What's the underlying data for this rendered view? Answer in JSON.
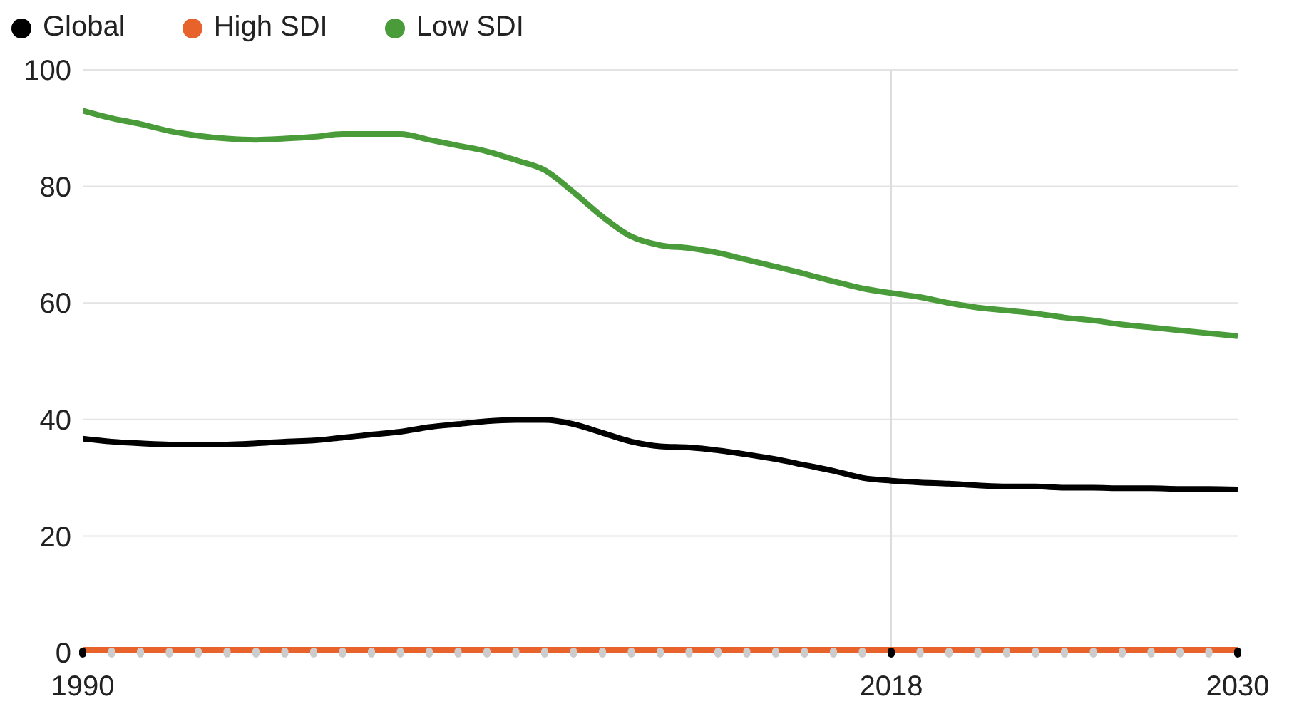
{
  "chart_data": {
    "type": "line",
    "x": [
      1990,
      1991,
      1992,
      1993,
      1994,
      1995,
      1996,
      1997,
      1998,
      1999,
      2000,
      2001,
      2002,
      2003,
      2004,
      2005,
      2006,
      2007,
      2008,
      2009,
      2010,
      2011,
      2012,
      2013,
      2014,
      2015,
      2016,
      2017,
      2018,
      2019,
      2020,
      2021,
      2022,
      2023,
      2024,
      2025,
      2026,
      2027,
      2028,
      2029,
      2030
    ],
    "series": [
      {
        "name": "Global",
        "color": "#000000",
        "values": [
          36.7,
          36.2,
          35.9,
          35.7,
          35.7,
          35.7,
          35.9,
          36.2,
          36.4,
          36.9,
          37.4,
          37.9,
          38.7,
          39.2,
          39.7,
          39.9,
          39.9,
          39.2,
          37.7,
          36.2,
          35.4,
          35.2,
          34.7,
          34,
          33.2,
          32.2,
          31.2,
          30,
          29.5,
          29.2,
          29,
          28.7,
          28.5,
          28.5,
          28.3,
          28.3,
          28.2,
          28.2,
          28.1,
          28.1,
          28
        ]
      },
      {
        "name": "High SDI",
        "color": "#e8632b",
        "values": [
          0.5,
          0.5,
          0.5,
          0.5,
          0.5,
          0.5,
          0.5,
          0.5,
          0.5,
          0.5,
          0.5,
          0.5,
          0.5,
          0.5,
          0.5,
          0.5,
          0.5,
          0.5,
          0.5,
          0.5,
          0.5,
          0.5,
          0.5,
          0.5,
          0.5,
          0.5,
          0.5,
          0.5,
          0.5,
          0.5,
          0.5,
          0.5,
          0.5,
          0.5,
          0.5,
          0.5,
          0.5,
          0.5,
          0.5,
          0.5,
          0.5
        ]
      },
      {
        "name": "Low SDI",
        "color": "#4a9c3a",
        "values": [
          93,
          91.7,
          90.7,
          89.5,
          88.7,
          88.2,
          88,
          88.2,
          88.5,
          89,
          89,
          89,
          88,
          87,
          86,
          84.5,
          82.8,
          79,
          74.8,
          71.4,
          69.9,
          69.4,
          68.6,
          67.4,
          66.2,
          65,
          63.7,
          62.5,
          61.7,
          61,
          60,
          59.2,
          58.7,
          58.2,
          57.5,
          57,
          56.3,
          55.8,
          55.3,
          54.8,
          54.3
        ]
      }
    ],
    "xlim": [
      1990,
      2030
    ],
    "xticks": [
      1990,
      {
        "value": 1991,
        "label": null
      },
      {
        "value": 1992,
        "label": null
      },
      {
        "value": 1993,
        "label": null
      },
      {
        "value": 1994,
        "label": null
      },
      {
        "value": 1995,
        "label": null
      },
      {
        "value": 1996,
        "label": null
      },
      {
        "value": 1997,
        "label": null
      },
      {
        "value": 1998,
        "label": null
      },
      {
        "value": 1999,
        "label": null
      },
      {
        "value": 2000,
        "label": null
      },
      {
        "value": 2001,
        "label": null
      },
      {
        "value": 2002,
        "label": null
      },
      {
        "value": 2003,
        "label": null
      },
      {
        "value": 2004,
        "label": null
      },
      {
        "value": 2005,
        "label": null
      },
      {
        "value": 2006,
        "label": null
      },
      {
        "value": 2007,
        "label": null
      },
      {
        "value": 2008,
        "label": null
      },
      {
        "value": 2009,
        "label": null
      },
      {
        "value": 2010,
        "label": null
      },
      {
        "value": 2011,
        "label": null
      },
      {
        "value": 2012,
        "label": null
      },
      {
        "value": 2013,
        "label": null
      },
      {
        "value": 2014,
        "label": null
      },
      {
        "value": 2015,
        "label": null
      },
      {
        "value": 2016,
        "label": null
      },
      {
        "value": 2017,
        "label": null
      },
      2018,
      {
        "value": 2019,
        "label": null
      },
      {
        "value": 2020,
        "label": null
      },
      {
        "value": 2021,
        "label": null
      },
      {
        "value": 2022,
        "label": null
      },
      {
        "value": 2023,
        "label": null
      },
      {
        "value": 2024,
        "label": null
      },
      {
        "value": 2025,
        "label": null
      },
      {
        "value": 2026,
        "label": null
      },
      {
        "value": 2027,
        "label": null
      },
      {
        "value": 2028,
        "label": null
      },
      {
        "value": 2029,
        "label": null
      },
      2030
    ],
    "ylim": [
      0,
      100
    ],
    "yticks": [
      0,
      20,
      40,
      60,
      80,
      100
    ],
    "ref_lines": [
      {
        "axis": "x",
        "value": 2018,
        "color": "#dddddd"
      }
    ],
    "grid": "y",
    "legend": "top left",
    "marker": "none",
    "line_style": "solid"
  }
}
